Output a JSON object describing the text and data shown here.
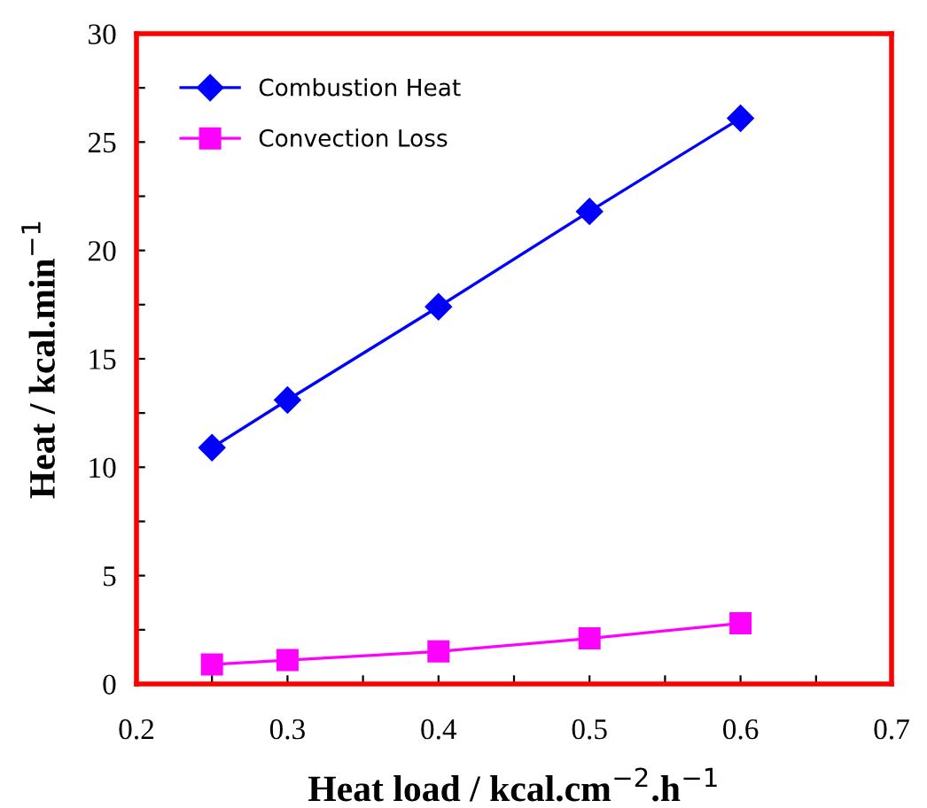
{
  "chart_data": {
    "type": "line",
    "xlabel": "Heat load / kcal.cm$^{−2}$.h$^{−1}$",
    "ylabel": "Heat / kcal.min$^{−1}$",
    "x": [
      0.25,
      0.3,
      0.4,
      0.5,
      0.6
    ],
    "series": [
      {
        "name": "Combustion Heat",
        "color": "#0000ff",
        "marker": "diamond",
        "values": [
          10.9,
          13.1,
          17.4,
          21.8,
          26.1
        ]
      },
      {
        "name": "Convection Loss",
        "color": "#ff00ff",
        "marker": "square",
        "values": [
          0.9,
          1.1,
          1.5,
          2.1,
          2.8
        ]
      }
    ],
    "xlim": [
      0.2,
      0.7
    ],
    "ylim": [
      0,
      30
    ],
    "xticks": [
      0.2,
      {
        "value": 0.25,
        "label": null
      },
      0.3,
      {
        "value": 0.35,
        "label": null
      },
      0.4,
      {
        "value": 0.45,
        "label": null
      },
      0.5,
      {
        "value": 0.55,
        "label": null
      },
      0.6,
      {
        "value": 0.65,
        "label": null
      },
      0.7
    ],
    "yticks": [
      0,
      {
        "value": 2.5,
        "label": null
      },
      5,
      {
        "value": 7.5,
        "label": null
      },
      10,
      {
        "value": 12.5,
        "label": null
      },
      15,
      {
        "value": 17.5,
        "label": null
      },
      20,
      {
        "value": 22.5,
        "label": null
      },
      25,
      {
        "value": 27.5,
        "label": null
      },
      30
    ],
    "grid": false,
    "legend": "top left",
    "line_style": "solid"
  }
}
